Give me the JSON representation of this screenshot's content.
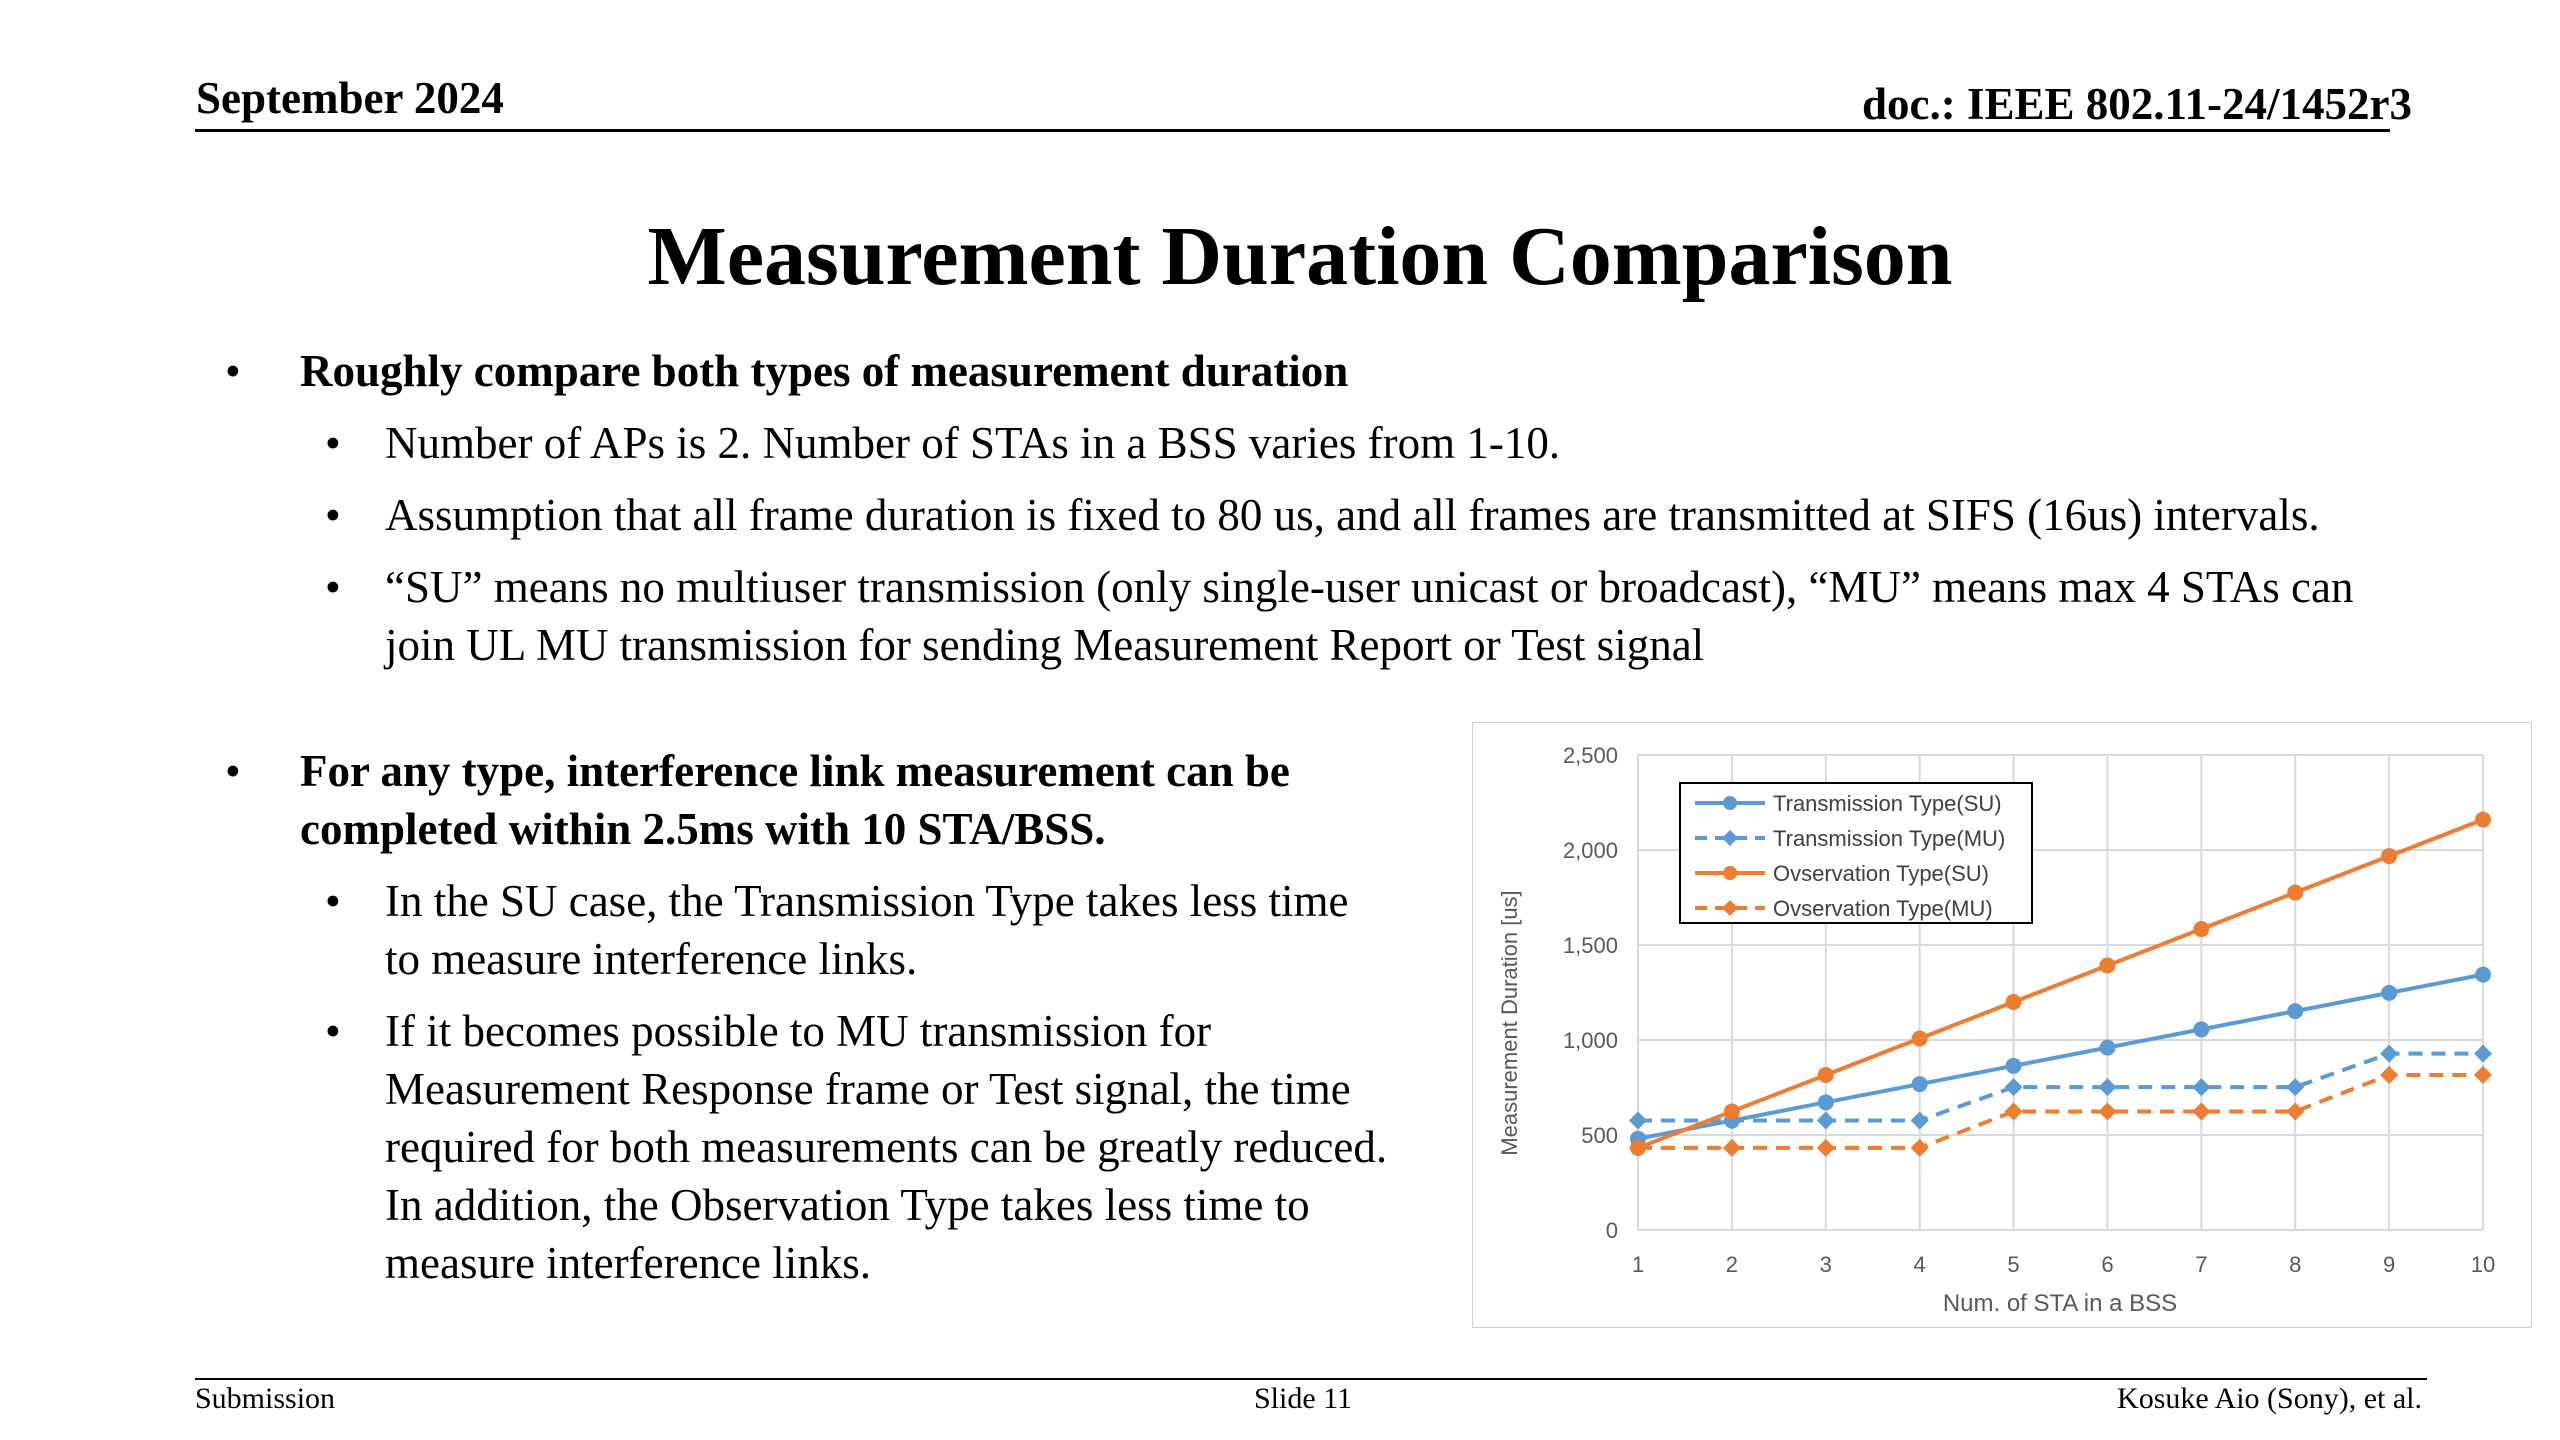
{
  "header": {
    "date": "September 2024",
    "doc": "doc.: IEEE 802.11-24/1452r3"
  },
  "title": "Measurement Duration Comparison",
  "bullets": {
    "b1": "Roughly compare both types of measurement duration",
    "b1_1": "Number of APs is 2. Number of STAs in a BSS varies from 1-10.",
    "b1_2": "Assumption that all frame duration is fixed to 80 us, and all frames are transmitted at SIFS (16us) intervals.",
    "b1_3_line1": "“SU” means no multiuser transmission (only single-user unicast or broadcast), “MU” means max 4 STAs can",
    "b1_3_line2": "join UL MU transmission for sending Measurement Report or Test signal",
    "b2_line1": "For any type, interference link measurement can be",
    "b2_line2": "completed within 2.5ms with 10 STA/BSS.",
    "b2_1_line1": "In the SU case, the Transmission Type takes less time",
    "b2_1_line2": "to measure interference links.",
    "b2_2_line1": "If it becomes possible to MU transmission for",
    "b2_2_line2": "Measurement Response frame or Test signal, the time",
    "b2_2_line3": "required for both measurements can be greatly reduced.",
    "b2_2_line4": "In addition, the Observation Type takes less time to",
    "b2_2_line5": "measure interference links.",
    "bullet_glyph": "•"
  },
  "chart_data": {
    "type": "line",
    "x": [
      1,
      2,
      3,
      4,
      5,
      6,
      7,
      8,
      9,
      10
    ],
    "series": [
      {
        "name": "Transmission Type(SU)",
        "color": "#5B9BD5",
        "dashed": false,
        "values": [
          480,
          576,
          672,
          768,
          864,
          960,
          1056,
          1152,
          1248,
          1344
        ]
      },
      {
        "name": "Transmission Type(MU)",
        "color": "#5B9BD5",
        "dashed": true,
        "values": [
          576,
          576,
          576,
          576,
          752,
          752,
          752,
          752,
          928,
          928
        ]
      },
      {
        "name": "Ovservation Type(SU)",
        "color": "#ED7D31",
        "dashed": false,
        "values": [
          432,
          624,
          816,
          1008,
          1200,
          1392,
          1584,
          1776,
          1968,
          2160
        ]
      },
      {
        "name": "Ovservation Type(MU)",
        "color": "#ED7D31",
        "dashed": true,
        "values": [
          432,
          432,
          432,
          432,
          624,
          624,
          624,
          624,
          816,
          816
        ]
      }
    ],
    "xlabel": "Num. of STA in a BSS",
    "ylabel": "Measurement Duration [us]",
    "ylim": [
      0,
      2500
    ],
    "yticks": [
      "0",
      "500",
      "1,000",
      "1,500",
      "2,000",
      "2,500"
    ],
    "ytick_values": [
      0,
      500,
      1000,
      1500,
      2000,
      2500
    ],
    "xticks": [
      "1",
      "2",
      "3",
      "4",
      "5",
      "6",
      "7",
      "8",
      "9",
      "10"
    ],
    "grid": true,
    "legend": "top-left"
  },
  "footer": {
    "left": "Submission",
    "center": "Slide 11",
    "right": "Kosuke Aio (Sony), et al."
  }
}
